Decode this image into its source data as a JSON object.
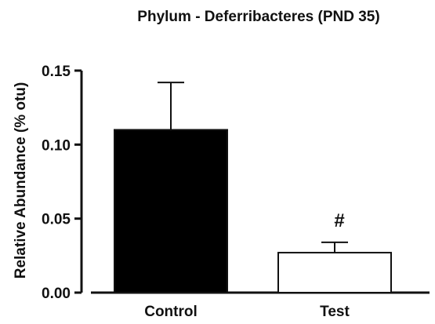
{
  "chart_data": {
    "type": "bar",
    "title": "Phylum - Deferribacteres (PND 35)",
    "xlabel": "",
    "ylabel": "Relative Abundance (% otu)",
    "ylim": [
      0,
      0.15
    ],
    "yticks": [
      "0.00",
      "0.05",
      "0.10",
      "0.15"
    ],
    "categories": [
      "Control",
      "Test"
    ],
    "values": [
      0.11,
      0.027
    ],
    "error": [
      0.032,
      0.007
    ],
    "annotations": [
      "",
      "#"
    ],
    "bar_fill": [
      "#000000",
      "#ffffff"
    ],
    "grid": false,
    "legend": "none"
  }
}
